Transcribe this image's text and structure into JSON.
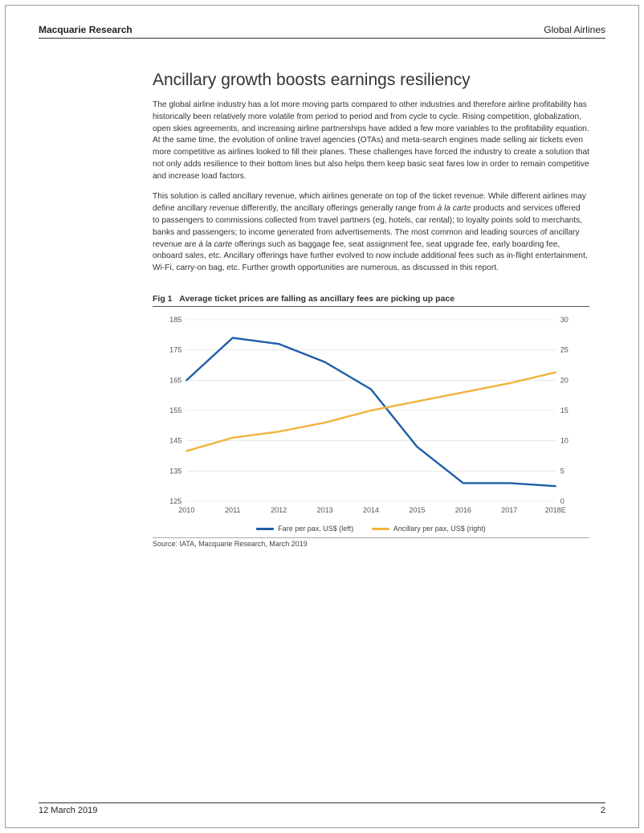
{
  "header": {
    "left": "Macquarie Research",
    "right": "Global Airlines"
  },
  "title": "Ancillary growth boosts earnings resiliency",
  "paragraphs": {
    "p1": "The global airline industry has a lot more moving parts compared to other industries and therefore airline profitability has historically been relatively more volatile from period to period and from cycle to cycle. Rising competition, globalization, open skies agreements, and increasing airline partnerships have added a few more variables to the profitability equation. At the same time, the evolution of online travel agencies (OTAs) and meta-search engines made selling air tickets even more competitive as airlines looked to fill their planes. These challenges have forced the industry to create a solution that not only adds resilience to their bottom lines but also helps them keep basic seat fares low in order to remain competitive and increase load factors.",
    "p2a": "This solution is called ancillary revenue, which airlines generate on top of the ticket revenue. While different airlines may define ancillary revenue differently, the ancillary offerings generally range from ",
    "p2_ital1": "à la carte",
    "p2b": " products and services offered to passengers to commissions collected from travel partners (eg, hotels, car rental); to loyalty points sold to merchants, banks and passengers; to income generated from advertisements. The most common and leading sources of ancillary revenue are ",
    "p2_ital2": "à la carte",
    "p2c": " offerings such as baggage fee, seat assignment fee, seat upgrade fee, early boarding fee, onboard sales, etc. Ancillary offerings have further evolved to now include additional fees such as in-flight entertainment, Wi-Fi, carry-on bag, etc. Further growth opportunities are numerous, as discussed in this report."
  },
  "figure": {
    "label": "Fig 1",
    "title": "Average ticket prices are falling as ancillary fees are picking up pace",
    "source": "Source: IATA, Macquarie Research, March 2019",
    "chart": {
      "type": "line",
      "categories": [
        "2010",
        "2011",
        "2012",
        "2013",
        "2014",
        "2015",
        "2016",
        "2017",
        "2018E"
      ],
      "series": [
        {
          "name": "Fare per pax, US$ (left)",
          "color": "#1f5ea8",
          "axis": "left",
          "values": [
            165,
            179,
            177,
            171,
            162,
            143,
            131,
            131,
            130
          ]
        },
        {
          "name": "Ancillary per pax, US$ (right)",
          "color": "#f0b33c",
          "axis": "right",
          "values": [
            8.3,
            10.5,
            11.5,
            13.0,
            15.0,
            16.5,
            18.0,
            19.5,
            21.3
          ]
        }
      ],
      "left_axis": {
        "min": 125,
        "max": 185,
        "step": 10
      },
      "right_axis": {
        "min": 0,
        "max": 30,
        "step": 5
      },
      "line_width": 2.4,
      "background_color": "#ffffff",
      "grid_color": "#d9d9d9",
      "tick_font_size": 9,
      "axis_text_color": "#555555"
    }
  },
  "footer": {
    "date": "12 March 2019",
    "page": "2"
  }
}
